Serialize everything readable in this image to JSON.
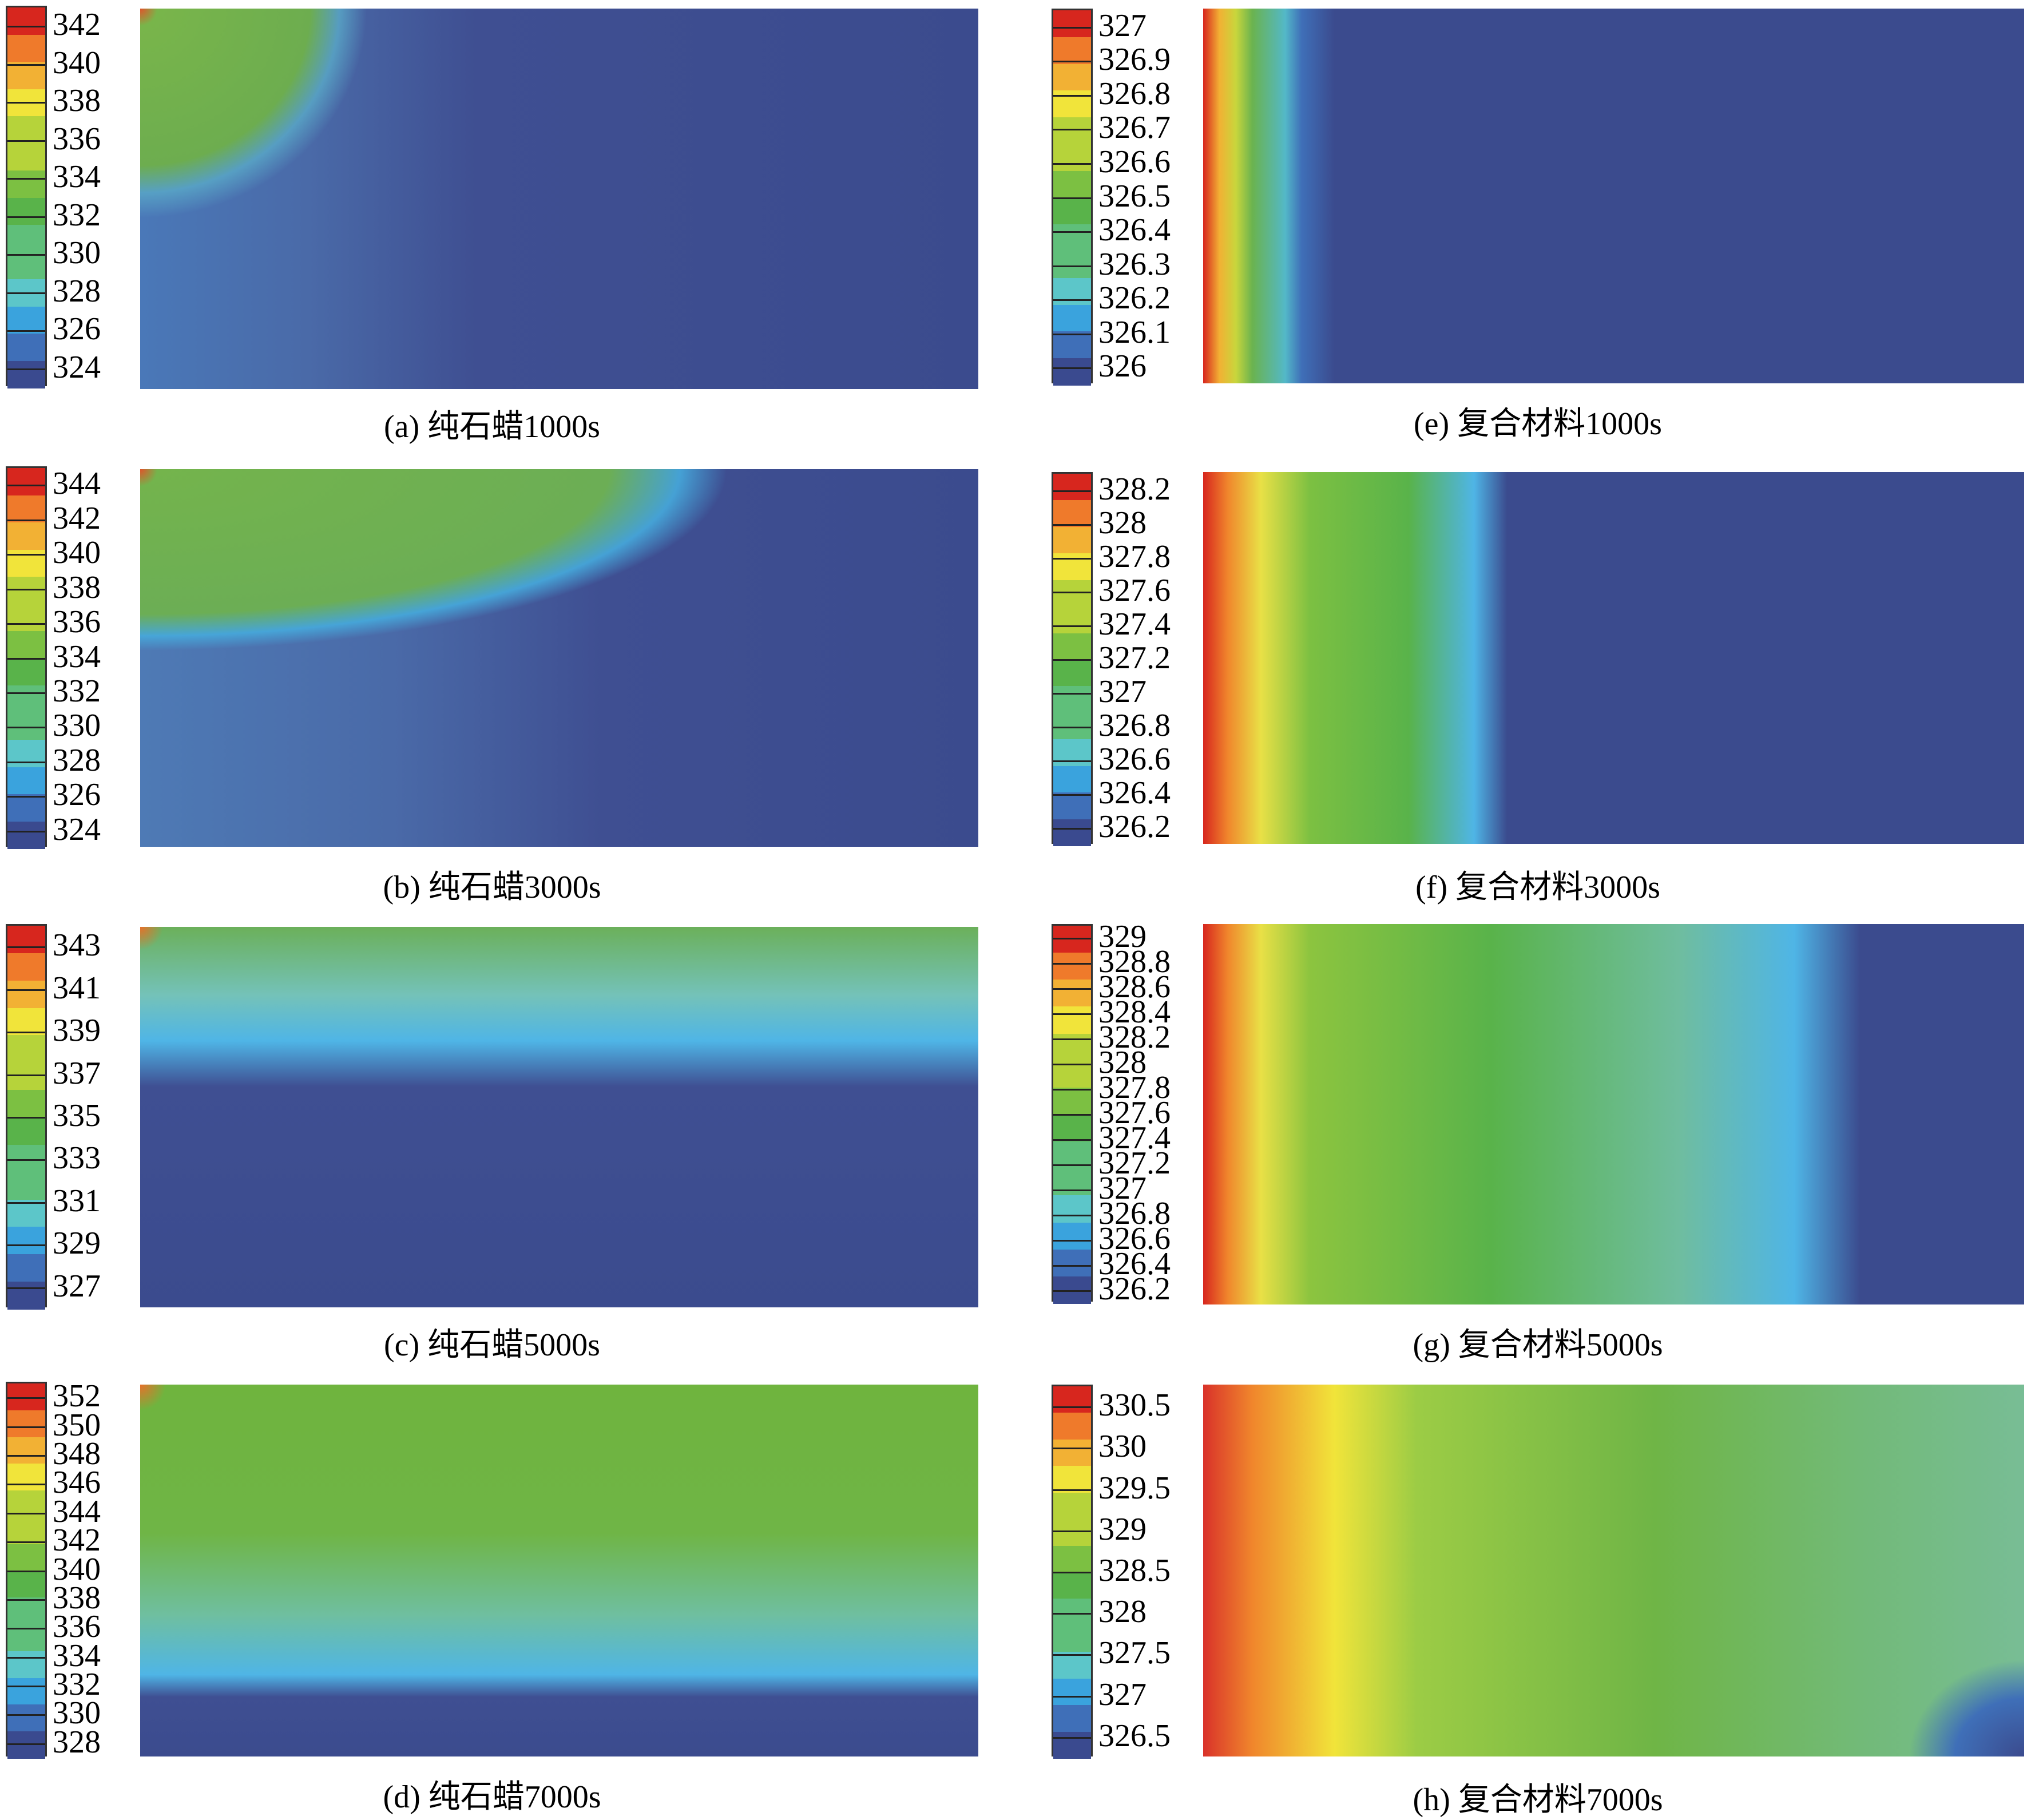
{
  "chart_data": [
    {
      "type": "heatmap",
      "title": "",
      "caption": "(a) 纯石蜡1000s",
      "colorbar": {
        "tick_labels": [
          "342",
          "340",
          "338",
          "336",
          "334",
          "332",
          "330",
          "328",
          "326",
          "324"
        ],
        "range": [
          323,
          343
        ]
      },
      "colors": {
        "top": "#d7261e",
        "bottom": "#3a4a8f"
      }
    },
    {
      "type": "heatmap",
      "title": "",
      "caption": "(b) 纯石蜡3000s",
      "colorbar": {
        "tick_labels": [
          "344",
          "342",
          "340",
          "338",
          "336",
          "334",
          "332",
          "330",
          "328",
          "326",
          "324"
        ],
        "range": [
          323,
          345
        ]
      }
    },
    {
      "type": "heatmap",
      "title": "",
      "caption": "(c) 纯石蜡5000s",
      "colorbar": {
        "tick_labels": [
          "343",
          "341",
          "339",
          "337",
          "335",
          "333",
          "331",
          "329",
          "327"
        ],
        "range": [
          326,
          344
        ]
      }
    },
    {
      "type": "heatmap",
      "title": "",
      "caption": "(d) 纯石蜡7000s",
      "colorbar": {
        "tick_labels": [
          "352",
          "350",
          "348",
          "346",
          "344",
          "342",
          "340",
          "338",
          "336",
          "334",
          "332",
          "330",
          "328"
        ],
        "range": [
          327,
          353
        ]
      }
    },
    {
      "type": "heatmap",
      "title": "",
      "caption": "(e) 复合材料1000s",
      "colorbar": {
        "tick_labels": [
          "327",
          "326.9",
          "326.8",
          "326.7",
          "326.6",
          "326.5",
          "326.4",
          "326.3",
          "326.2",
          "326.1",
          "326"
        ],
        "range": [
          325.95,
          327.05
        ]
      }
    },
    {
      "type": "heatmap",
      "title": "",
      "caption": "(f) 复合材料3000s",
      "colorbar": {
        "tick_labels": [
          "328.2",
          "328",
          "327.8",
          "327.6",
          "327.4",
          "327.2",
          "327",
          "326.8",
          "326.6",
          "326.4",
          "326.2"
        ],
        "range": [
          326.1,
          328.3
        ]
      }
    },
    {
      "type": "heatmap",
      "title": "",
      "caption": "(g) 复合材料5000s",
      "colorbar": {
        "tick_labels": [
          "329",
          "328.8",
          "328.6",
          "328.4",
          "328.2",
          "328",
          "327.8",
          "327.6",
          "327.4",
          "327.2",
          "327",
          "326.8",
          "326.6",
          "326.4",
          "326.2"
        ],
        "range": [
          326.1,
          329.1
        ]
      }
    },
    {
      "type": "heatmap",
      "title": "",
      "caption": "(h) 复合材料7000s",
      "colorbar": {
        "tick_labels": [
          "330.5",
          "330",
          "329.5",
          "329",
          "328.5",
          "328",
          "327.5",
          "327",
          "326.5"
        ],
        "range": [
          326.25,
          330.75
        ]
      }
    }
  ]
}
